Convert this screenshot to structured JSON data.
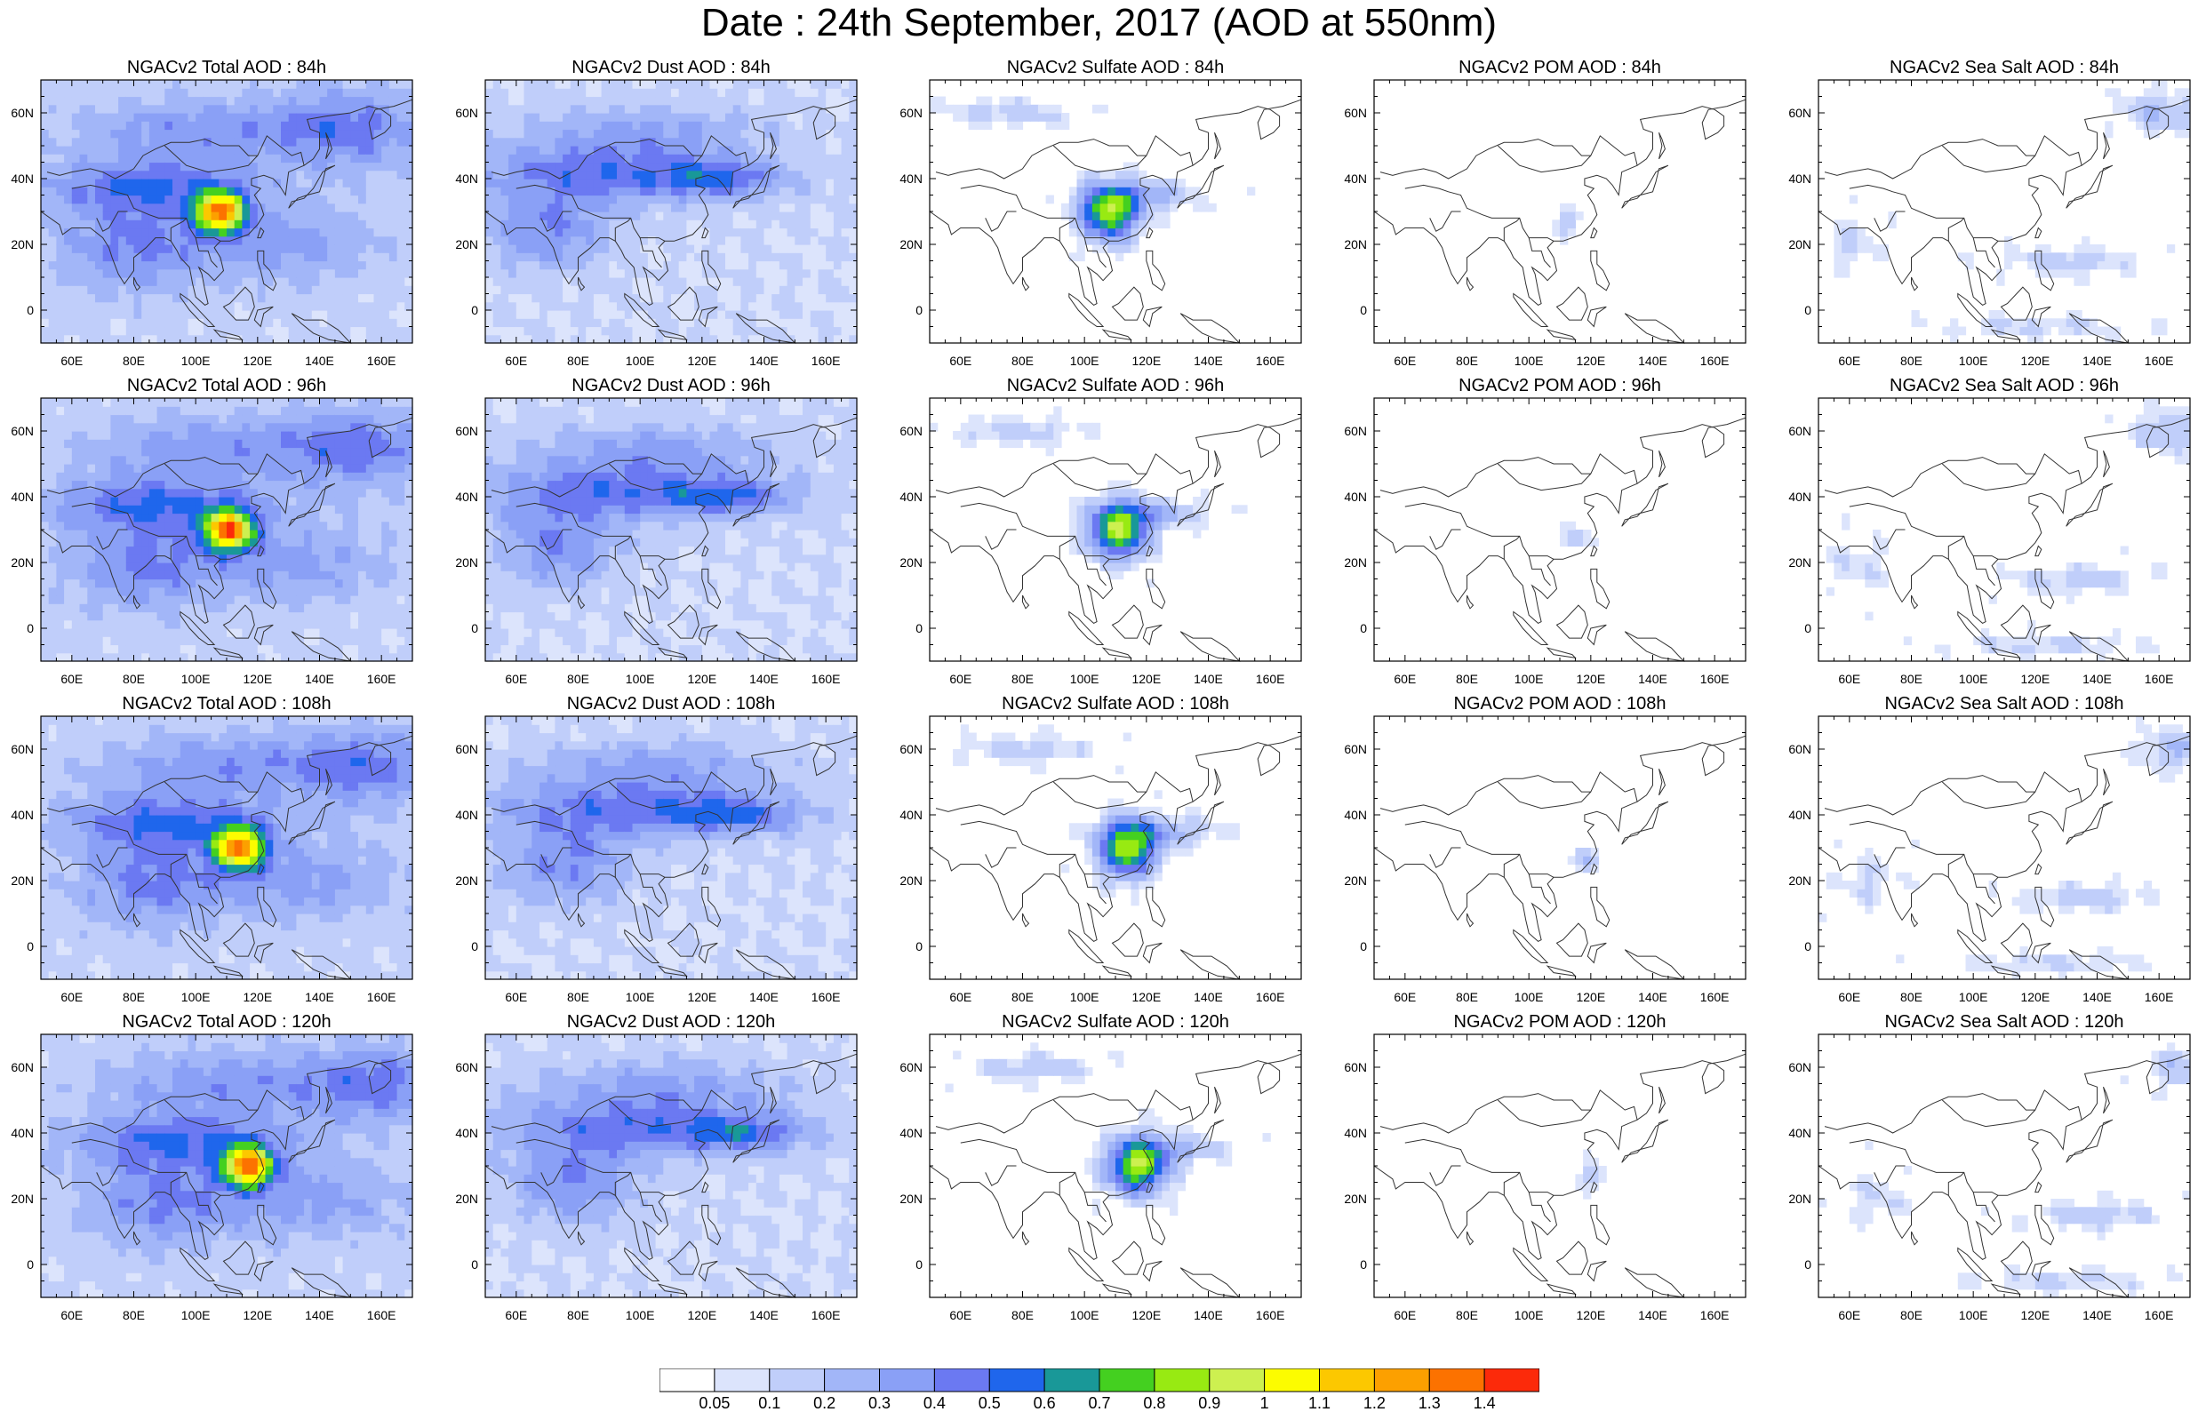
{
  "title": "Date : 24th September, 2017 (AOD at 550nm)",
  "row_labels": [
    "84h",
    "96h",
    "108h",
    "120h"
  ],
  "panels": [
    [
      "NGACv2 Total AOD : 84h",
      "NGACv2 Dust AOD : 84h",
      "NGACv2 Sulfate AOD : 84h",
      "NGACv2 POM AOD : 84h",
      "NGACv2 Sea Salt AOD : 84h"
    ],
    [
      "NGACv2 Total AOD : 96h",
      "NGACv2 Dust AOD : 96h",
      "NGACv2 Sulfate AOD : 96h",
      "NGACv2 POM AOD : 96h",
      "NGACv2 Sea Salt AOD : 96h"
    ],
    [
      "NGACv2 Total AOD : 108h",
      "NGACv2 Dust AOD : 108h",
      "NGACv2 Sulfate AOD : 108h",
      "NGACv2 POM AOD : 108h",
      "NGACv2 Sea Salt AOD : 108h"
    ],
    [
      "NGACv2 Total AOD : 120h",
      "NGACv2 Dust AOD : 120h",
      "NGACv2 Sulfate AOD : 120h",
      "NGACv2 POM AOD : 120h",
      "NGACv2 Sea Salt  AOD : 120h"
    ]
  ],
  "lon_labels": [
    "60E",
    "80E",
    "100E",
    "120E",
    "140E",
    "160E"
  ],
  "lat_labels": [
    "60N",
    "40N",
    "20N",
    "0"
  ],
  "colorbar": {
    "labels": [
      "0.05",
      "0.1",
      "0.2",
      "0.3",
      "0.4",
      "0.5",
      "0.6",
      "0.7",
      "0.8",
      "0.9",
      "1",
      "1.1",
      "1.2",
      "1.3",
      "1.4"
    ],
    "colors": [
      "#ffffff",
      "#dce4fc",
      "#c0cefa",
      "#a2b6f8",
      "#8aa0f6",
      "#6b79f2",
      "#1f66ec",
      "#199898",
      "#44d020",
      "#98ea12",
      "#cdf050",
      "#fcfc00",
      "#fcc800",
      "#fca000",
      "#fc7200",
      "#fc2a0a"
    ]
  },
  "colors": {
    "background": "#ffffff",
    "coastline": "#333333",
    "frame": "#000000"
  }
}
